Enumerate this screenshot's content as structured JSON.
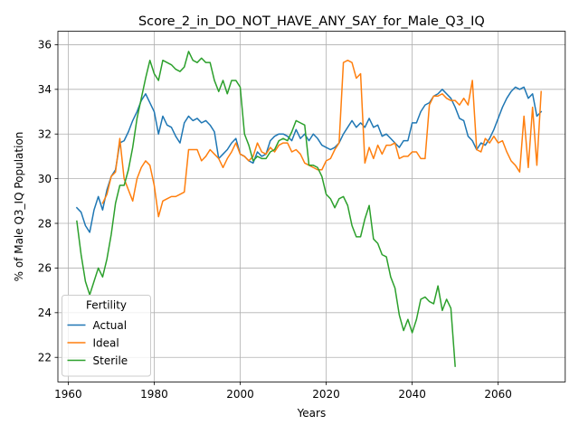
{
  "chart_data": {
    "type": "line",
    "title": "Score_2_in_DO_NOT_HAVE_ANY_SAY_for_Male_Q3_IQ",
    "xlabel": "Years",
    "ylabel": "% of Male Q3_IQ Population",
    "xlim": [
      1957.6,
      2075.6
    ],
    "ylim": [
      20.9,
      36.6
    ],
    "xticks": [
      1960,
      1980,
      2000,
      2020,
      2040,
      2060
    ],
    "yticks": [
      22,
      24,
      26,
      28,
      30,
      32,
      34,
      36
    ],
    "grid": true,
    "legend": {
      "title": "Fertility",
      "placement": "lower-left"
    },
    "series": [
      {
        "name": "Actual",
        "color": "#1f77b4",
        "x": [
          1962,
          1963,
          1964,
          1965,
          1966,
          1967,
          1968,
          1969,
          1970,
          1971,
          1972,
          1973,
          1974,
          1975,
          1976,
          1977,
          1978,
          1979,
          1980,
          1981,
          1982,
          1983,
          1984,
          1985,
          1986,
          1987,
          1988,
          1989,
          1990,
          1991,
          1992,
          1993,
          1994,
          1995,
          1996,
          1997,
          1998,
          1999,
          2000,
          2001,
          2002,
          2003,
          2004,
          2005,
          2006,
          2007,
          2008,
          2009,
          2010,
          2011,
          2012,
          2013,
          2014,
          2015,
          2016,
          2017,
          2018,
          2019,
          2020,
          2021,
          2022,
          2023,
          2024,
          2025,
          2026,
          2027,
          2028,
          2029,
          2030,
          2031,
          2032,
          2033,
          2034,
          2035,
          2036,
          2037,
          2038,
          2039,
          2040,
          2041,
          2042,
          2043,
          2044,
          2045,
          2046,
          2047,
          2048,
          2049,
          2050,
          2051,
          2052,
          2053,
          2054,
          2055,
          2056,
          2057,
          2058,
          2059,
          2060,
          2061,
          2062,
          2063,
          2064,
          2065,
          2066,
          2067,
          2068,
          2069,
          2070
        ],
        "y": [
          28.7,
          28.5,
          27.9,
          27.6,
          28.6,
          29.2,
          28.6,
          29.5,
          30.1,
          30.4,
          31.6,
          31.7,
          32.1,
          32.6,
          33.0,
          33.5,
          33.8,
          33.4,
          33.0,
          32.0,
          32.8,
          32.4,
          32.3,
          31.9,
          31.6,
          32.5,
          32.8,
          32.6,
          32.7,
          32.5,
          32.6,
          32.4,
          32.1,
          30.9,
          31.1,
          31.3,
          31.6,
          31.8,
          31.1,
          31.0,
          30.8,
          30.7,
          31.2,
          31.0,
          31.1,
          31.7,
          31.9,
          32.0,
          32.0,
          31.9,
          31.7,
          32.2,
          31.8,
          32.0,
          31.7,
          32.0,
          31.8,
          31.5,
          31.4,
          31.3,
          31.4,
          31.6,
          32.0,
          32.3,
          32.6,
          32.3,
          32.5,
          32.3,
          32.7,
          32.3,
          32.4,
          31.9,
          32.0,
          31.8,
          31.6,
          31.4,
          31.7,
          31.7,
          32.5,
          32.5,
          33.0,
          33.3,
          33.4,
          33.7,
          33.8,
          34.0,
          33.8,
          33.6,
          33.2,
          32.7,
          32.6,
          31.9,
          31.7,
          31.3,
          31.6,
          31.5,
          31.8,
          32.2,
          32.7,
          33.2,
          33.6,
          33.9,
          34.1,
          34.0,
          34.1,
          33.6,
          33.8,
          32.8,
          33.0
        ]
      },
      {
        "name": "Ideal",
        "color": "#ff7f0e",
        "x": [
          1968,
          1969,
          1970,
          1971,
          1972,
          1973,
          1974,
          1975,
          1976,
          1977,
          1978,
          1979,
          1980,
          1981,
          1982,
          1983,
          1984,
          1985,
          1986,
          1987,
          1988,
          1989,
          1990,
          1991,
          1992,
          1993,
          1994,
          1995,
          1996,
          1997,
          1998,
          1999,
          2000,
          2001,
          2002,
          2003,
          2004,
          2005,
          2006,
          2007,
          2008,
          2009,
          2010,
          2011,
          2012,
          2013,
          2014,
          2015,
          2016,
          2017,
          2018,
          2019,
          2020,
          2021,
          2022,
          2023,
          2024,
          2025,
          2026,
          2027,
          2028,
          2029,
          2030,
          2031,
          2032,
          2033,
          2034,
          2035,
          2036,
          2037,
          2038,
          2039,
          2040,
          2041,
          2042,
          2043,
          2044,
          2045,
          2046,
          2047,
          2048,
          2049,
          2050,
          2051,
          2052,
          2053,
          2054,
          2055,
          2056,
          2057,
          2058,
          2059,
          2060,
          2061,
          2062,
          2063,
          2064,
          2065,
          2066,
          2067,
          2068,
          2069,
          2070
        ],
        "y": [
          28.9,
          29.3,
          30.1,
          30.3,
          31.8,
          30.0,
          29.5,
          29.0,
          30.0,
          30.5,
          30.8,
          30.6,
          29.7,
          28.3,
          29.0,
          29.1,
          29.2,
          29.2,
          29.3,
          29.4,
          31.3,
          31.3,
          31.3,
          30.8,
          31.0,
          31.3,
          31.1,
          30.9,
          30.5,
          30.9,
          31.2,
          31.6,
          31.1,
          31.0,
          30.8,
          31.0,
          31.6,
          31.2,
          31.1,
          31.4,
          31.2,
          31.5,
          31.6,
          31.6,
          31.2,
          31.3,
          31.1,
          30.7,
          30.6,
          30.5,
          30.4,
          30.4,
          30.8,
          30.9,
          31.3,
          31.6,
          35.2,
          35.3,
          35.2,
          34.5,
          34.7,
          30.7,
          31.4,
          30.9,
          31.5,
          31.1,
          31.5,
          31.5,
          31.6,
          30.9,
          31.0,
          31.0,
          31.2,
          31.2,
          30.9,
          30.9,
          33.3,
          33.7,
          33.7,
          33.8,
          33.6,
          33.5,
          33.5,
          33.3,
          33.6,
          33.3,
          34.4,
          31.3,
          31.2,
          31.8,
          31.6,
          31.9,
          31.6,
          31.7,
          31.2,
          30.8,
          30.6,
          30.3,
          32.8,
          30.5,
          33.2,
          30.6,
          33.9
        ]
      },
      {
        "name": "Sterile",
        "color": "#2ca02c",
        "x": [
          1962,
          1963,
          1964,
          1965,
          1966,
          1967,
          1968,
          1969,
          1970,
          1971,
          1972,
          1973,
          1974,
          1975,
          1976,
          1977,
          1978,
          1979,
          1980,
          1981,
          1982,
          1983,
          1984,
          1985,
          1986,
          1987,
          1988,
          1989,
          1990,
          1991,
          1992,
          1993,
          1994,
          1995,
          1996,
          1997,
          1998,
          1999,
          2000,
          2001,
          2002,
          2003,
          2004,
          2005,
          2006,
          2007,
          2008,
          2009,
          2010,
          2011,
          2012,
          2013,
          2014,
          2015,
          2016,
          2017,
          2018,
          2019,
          2020,
          2021,
          2022,
          2023,
          2024,
          2025,
          2026,
          2027,
          2028,
          2029,
          2030,
          2031,
          2032,
          2033,
          2034,
          2035,
          2036,
          2037,
          2038,
          2039,
          2040,
          2041,
          2042,
          2043,
          2044,
          2045,
          2046,
          2047,
          2048,
          2049,
          2050
        ],
        "y": [
          28.1,
          26.6,
          25.4,
          24.8,
          25.4,
          26.0,
          25.6,
          26.4,
          27.5,
          28.9,
          29.7,
          29.7,
          30.4,
          31.4,
          32.7,
          33.6,
          34.5,
          35.3,
          34.7,
          34.4,
          35.3,
          35.2,
          35.1,
          34.9,
          34.8,
          35.0,
          35.7,
          35.3,
          35.2,
          35.4,
          35.2,
          35.2,
          34.4,
          33.9,
          34.4,
          33.8,
          34.4,
          34.4,
          34.1,
          32.0,
          31.5,
          30.8,
          31.0,
          30.9,
          30.9,
          31.2,
          31.3,
          31.7,
          31.8,
          31.7,
          32.1,
          32.6,
          32.5,
          32.4,
          30.6,
          30.6,
          30.5,
          30.1,
          29.3,
          29.1,
          28.7,
          29.1,
          29.2,
          28.8,
          27.9,
          27.4,
          27.4,
          28.2,
          28.8,
          27.3,
          27.1,
          26.6,
          26.5,
          25.6,
          25.1,
          23.9,
          23.2,
          23.7,
          23.1,
          23.7,
          24.6,
          24.7,
          24.5,
          24.4,
          25.2,
          24.1,
          24.6,
          24.2,
          21.6
        ]
      }
    ]
  }
}
